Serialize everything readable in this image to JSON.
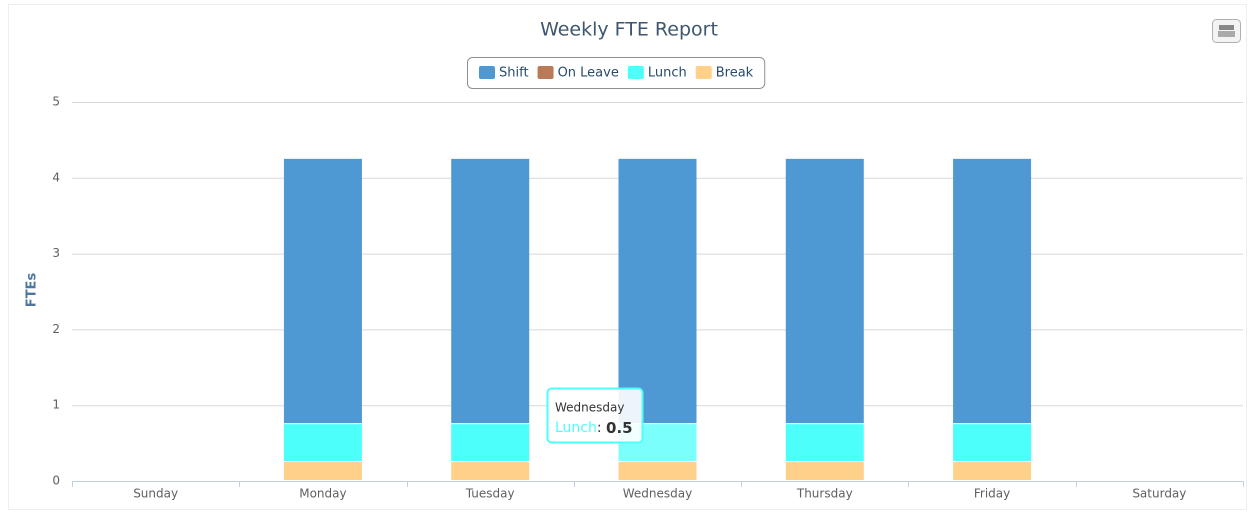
{
  "chart_data": {
    "type": "stacked_bar",
    "title": "Weekly FTE Report",
    "y_label": "FTEs",
    "categories": [
      "Sunday",
      "Monday",
      "Tuesday",
      "Wednesday",
      "Thursday",
      "Friday",
      "Saturday"
    ],
    "series": [
      {
        "name": "Shift",
        "color": "#4e99d3",
        "values": [
          0,
          3.5,
          3.5,
          3.5,
          3.5,
          3.5,
          0
        ]
      },
      {
        "name": "On Leave",
        "color": "#b97a57",
        "values": [
          0,
          0,
          0,
          0,
          0,
          0,
          0
        ]
      },
      {
        "name": "Lunch",
        "color": "#4dfffb",
        "values": [
          0,
          0.5,
          0.5,
          0.5,
          0.5,
          0.5,
          0
        ]
      },
      {
        "name": "Break",
        "color": "#ffd08a",
        "values": [
          0,
          0.25,
          0.25,
          0.25,
          0.25,
          0.25,
          0
        ]
      }
    ],
    "ylim": [
      0,
      5
    ],
    "yticks": [
      0,
      1,
      2,
      3,
      4,
      5
    ],
    "grid": true,
    "legend": "top",
    "tooltip": {
      "category": "Wednesday",
      "series": "Lunch",
      "value": 0.5
    }
  }
}
